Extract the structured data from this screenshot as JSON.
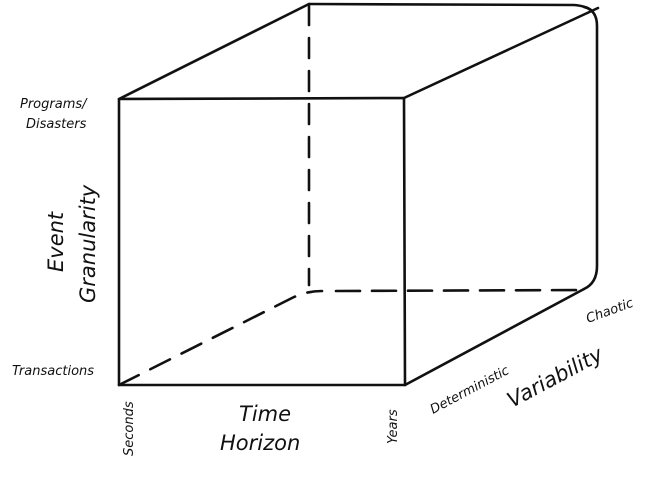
{
  "diagram": {
    "event_granularity_axis": {
      "title_line1": "Event",
      "title_line2": "Granularity",
      "top_label_line1": "Programs/",
      "top_label_line2": "Disasters",
      "bottom_label": "Transactions"
    },
    "time_horizon_axis": {
      "title_line1": "Time",
      "title_line2": "Horizon",
      "start_label": "Seconds",
      "end_label": "Years"
    },
    "variability_axis": {
      "title": "Variability",
      "start_label": "Deterministic",
      "end_label": "Chaotic"
    },
    "colors": {
      "stroke": "#111111",
      "background": "#ffffff"
    }
  }
}
